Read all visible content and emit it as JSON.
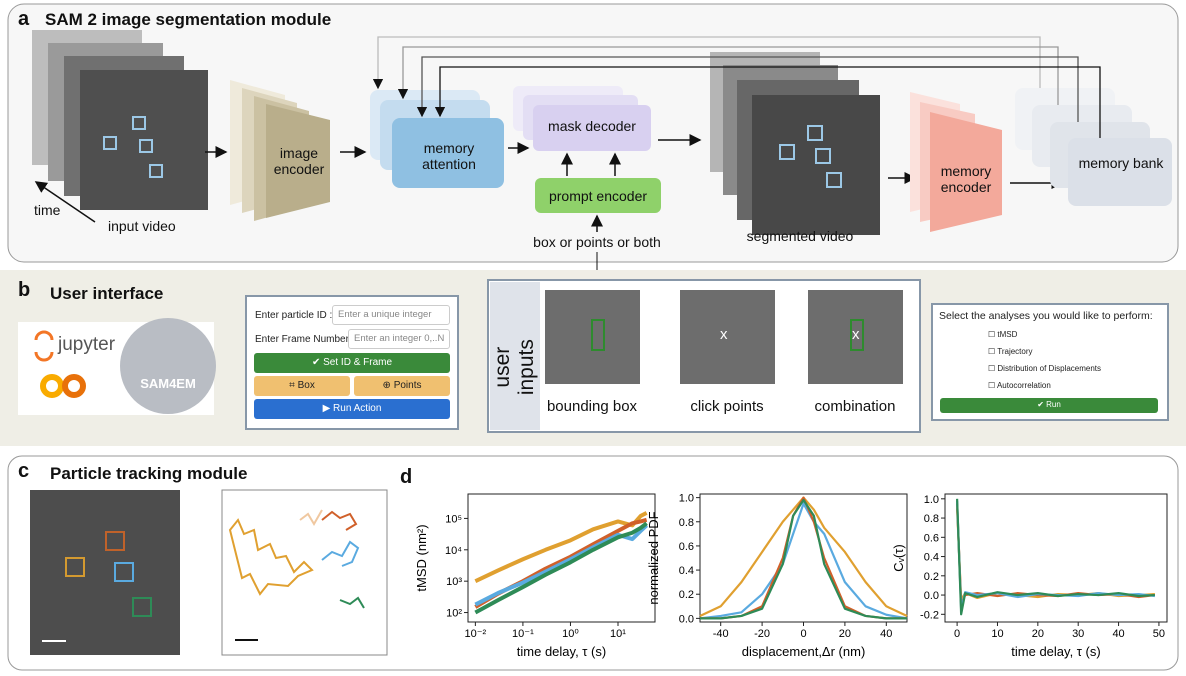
{
  "panel_a": {
    "letter": "a",
    "title": "SAM 2 image segmentation module",
    "time": "time",
    "input_video": "input video",
    "image_encoder": "image encoder",
    "memory_attention": "memory attention",
    "mask_decoder": "mask decoder",
    "prompt_encoder": "prompt encoder",
    "prompt_types": "box or points or both",
    "segmented_video": "segmented video",
    "memory_encoder": "memory encoder",
    "memory_bank": "memory bank"
  },
  "panel_b": {
    "letter": "b",
    "title": "User interface",
    "jupyter": "jupyter",
    "sam4em": "SAM4EM",
    "form": {
      "particle_id_label": "Enter particle ID :",
      "particle_id_placeholder": "Enter a unique integer",
      "frame_label": "Enter Frame Number:",
      "frame_placeholder": "Enter an integer 0,..N",
      "set_button": "Set ID & Frame",
      "box_button": "Box",
      "points_button": "Points",
      "run_button": "Run Action"
    },
    "user_inputs": {
      "title": "user inputs",
      "marker": "x",
      "options": [
        "bounding box",
        "click points",
        "combination"
      ]
    },
    "analyses": {
      "prompt": "Select the analyses you would like to perform:",
      "options": [
        "tMSD",
        "Trajectory",
        "Distribution of Displacements",
        "Autocorrelation"
      ],
      "run_button": "Run"
    }
  },
  "panel_c": {
    "letter": "c",
    "title": "Particle tracking module"
  },
  "panel_d": {
    "letter": "d",
    "charts": [
      {
        "type": "line",
        "xlabel": "time delay, τ (s)",
        "ylabel": "tMSD (nm²)",
        "log_x": true,
        "log_y": true,
        "xlim": [
          0.007,
          60
        ],
        "ylim": [
          50,
          600000
        ],
        "xticks": [
          {
            "value": 0.01,
            "label": "10⁻²"
          },
          {
            "value": 0.1,
            "label": "10⁻¹"
          },
          {
            "value": 1,
            "label": "10⁰"
          },
          {
            "value": 10,
            "label": "10¹"
          }
        ],
        "yticks": [
          {
            "value": 100,
            "label": "10²"
          },
          {
            "value": 1000,
            "label": "10³"
          },
          {
            "value": 10000,
            "label": "10⁴"
          },
          {
            "value": 100000,
            "label": "10⁵"
          }
        ],
        "x": [
          0.01,
          0.03,
          0.1,
          0.3,
          1,
          3,
          10,
          20,
          30,
          40
        ],
        "series": [
          {
            "color": "#e0a030",
            "values": [
              1000,
              2200,
              5000,
              10000,
              20000,
              45000,
              80000,
              60000,
              120000,
              150000
            ]
          },
          {
            "color": "#d0602a",
            "values": [
              150,
              400,
              1000,
              2500,
              6000,
              15000,
              40000,
              70000,
              80000,
              90000
            ]
          },
          {
            "color": "#5aaae0",
            "values": [
              180,
              420,
              900,
              2000,
              5000,
              12000,
              30000,
              22000,
              40000,
              60000
            ]
          },
          {
            "color": "#2e8b57",
            "values": [
              100,
              250,
              650,
              1600,
              4000,
              10000,
              25000,
              35000,
              50000,
              70000
            ]
          }
        ]
      },
      {
        "type": "line",
        "xlabel": "displacement,Δr (nm)",
        "ylabel": "normalized PDF",
        "xlim": [
          -50,
          50
        ],
        "ylim": [
          -0.03,
          1.03
        ],
        "xticks": [
          -40,
          -20,
          0,
          20,
          40
        ],
        "yticks": [
          {
            "value": 0,
            "label": "0.0"
          },
          {
            "value": 0.2,
            "label": "0.2"
          },
          {
            "value": 0.4,
            "label": "0.4"
          },
          {
            "value": 0.6,
            "label": "0.6"
          },
          {
            "value": 0.8,
            "label": "0.8"
          },
          {
            "value": 1,
            "label": "1.0"
          }
        ],
        "x": [
          -50,
          -40,
          -30,
          -20,
          -10,
          -5,
          0,
          5,
          10,
          20,
          30,
          40,
          50
        ],
        "series": [
          {
            "color": "#e0a030",
            "values": [
              0.02,
              0.1,
              0.3,
              0.55,
              0.8,
              0.9,
              1.0,
              0.9,
              0.75,
              0.55,
              0.3,
              0.1,
              0.02
            ]
          },
          {
            "color": "#5aaae0",
            "values": [
              0,
              0.02,
              0.05,
              0.2,
              0.45,
              0.7,
              0.95,
              0.8,
              0.7,
              0.3,
              0.1,
              0.03,
              0
            ]
          },
          {
            "color": "#d0602a",
            "values": [
              0,
              0,
              0.02,
              0.1,
              0.5,
              0.85,
              1.0,
              0.8,
              0.5,
              0.1,
              0.02,
              0,
              0
            ]
          },
          {
            "color": "#2e8b57",
            "values": [
              0,
              0,
              0.02,
              0.08,
              0.45,
              0.85,
              0.98,
              0.85,
              0.45,
              0.08,
              0.02,
              0,
              0
            ]
          }
        ]
      },
      {
        "type": "line",
        "xlabel": "time delay, τ (s)",
        "ylabel": "Cᵥ(τ)",
        "xlim": [
          -3,
          52
        ],
        "ylim": [
          -0.28,
          1.05
        ],
        "xticks": [
          0,
          10,
          20,
          30,
          40,
          50
        ],
        "yticks": [
          -0.2,
          {
            "value": 0,
            "label": "0.0"
          },
          0.2,
          0.4,
          0.6,
          0.8,
          {
            "value": 1,
            "label": "1.0"
          }
        ],
        "x": [
          0,
          1,
          2,
          5,
          10,
          15,
          20,
          25,
          30,
          35,
          40,
          45,
          49
        ],
        "series": [
          {
            "color": "#e0a030",
            "values": [
              0.9,
              -0.05,
              0.02,
              -0.03,
              0.02,
              0.0,
              -0.02,
              0.01,
              0.0,
              0.02,
              -0.01,
              0.0,
              0.01
            ]
          },
          {
            "color": "#d0602a",
            "values": [
              0.95,
              -0.1,
              0.0,
              0.02,
              -0.01,
              0.02,
              0.0,
              -0.01,
              0.02,
              0.0,
              0.01,
              -0.02,
              0.0
            ]
          },
          {
            "color": "#5aaae0",
            "values": [
              0.98,
              -0.15,
              0.03,
              0.0,
              0.02,
              -0.02,
              0.01,
              0.0,
              -0.01,
              0.02,
              0.0,
              0.01,
              -0.01
            ]
          },
          {
            "color": "#2e8b57",
            "values": [
              1.0,
              -0.2,
              0.02,
              -0.02,
              0.03,
              0.0,
              0.02,
              -0.01,
              0.01,
              0.0,
              0.02,
              -0.01,
              0.0
            ]
          }
        ]
      }
    ]
  }
}
